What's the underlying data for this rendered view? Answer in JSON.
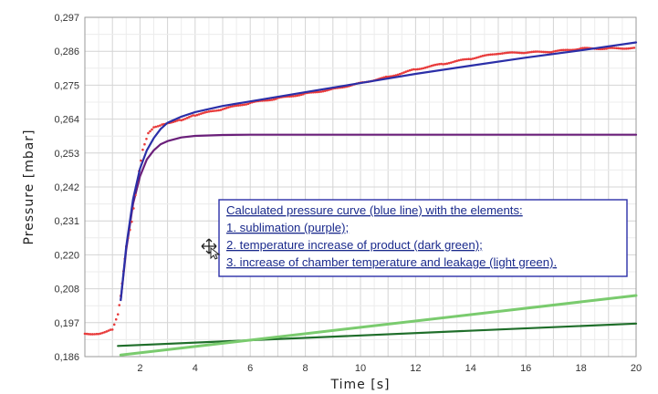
{
  "chart_data": {
    "type": "line",
    "title": "",
    "xlabel": "Time [s]",
    "ylabel": "Pressure [mbar]",
    "xlim": [
      0,
      20
    ],
    "ylim": [
      0.186,
      0.297
    ],
    "x_ticks": [
      2,
      4,
      6,
      8,
      10,
      12,
      14,
      16,
      18,
      20
    ],
    "y_ticks": [
      "0,186",
      "0,197",
      "0,208",
      "0,220",
      "0,231",
      "0,242",
      "0,253",
      "0,264",
      "0,275",
      "0,286",
      "0,297"
    ],
    "grid": true,
    "series": [
      {
        "color": "#2b2fa8",
        "kind": "line",
        "x": [
          1.3,
          1.5,
          1.75,
          2.0,
          2.25,
          2.5,
          2.75,
          3.0,
          3.5,
          4.0,
          5.0,
          6.0,
          8.0,
          10.0,
          12.0,
          14.0,
          16.0,
          18.0,
          20.0
        ],
        "y": [
          0.2045,
          0.222,
          0.2375,
          0.2475,
          0.2535,
          0.2575,
          0.2605,
          0.2625,
          0.2645,
          0.266,
          0.268,
          0.2695,
          0.2725,
          0.2755,
          0.2785,
          0.2812,
          0.2838,
          0.2862,
          0.2888
        ]
      },
      {
        "color": "#e83a3a",
        "kind": "dots",
        "x": [
          0.0,
          0.5,
          1.0,
          1.2,
          1.3,
          1.4,
          1.5,
          1.7,
          1.9,
          2.1,
          2.3,
          2.5,
          2.8,
          3.0,
          3.5,
          4.0,
          5.0,
          6.0,
          7.0,
          8.0,
          9.0,
          10.0,
          11.0,
          12.0,
          13.0,
          14.0,
          15.0,
          16.0,
          17.0,
          18.0,
          19.0,
          20.0
        ],
        "y": [
          0.1935,
          0.1935,
          0.195,
          0.2,
          0.206,
          0.214,
          0.222,
          0.23,
          0.243,
          0.2535,
          0.259,
          0.261,
          0.262,
          0.2625,
          0.2635,
          0.265,
          0.267,
          0.269,
          0.2705,
          0.272,
          0.2735,
          0.2755,
          0.2775,
          0.28,
          0.2818,
          0.2835,
          0.2852,
          0.2855,
          0.2858,
          0.2868,
          0.2868,
          0.287
        ]
      },
      {
        "color": "#6a1f7a",
        "kind": "line",
        "x": [
          1.3,
          1.5,
          1.75,
          2.0,
          2.25,
          2.5,
          2.75,
          3.0,
          3.5,
          4.0,
          5.0,
          6.0,
          10.0,
          20.0
        ],
        "y": [
          0.2045,
          0.221,
          0.236,
          0.245,
          0.2505,
          0.2535,
          0.2555,
          0.2565,
          0.2577,
          0.2582,
          0.2585,
          0.2586,
          0.2586,
          0.2586
        ]
      },
      {
        "color": "#1f6e2a",
        "kind": "line",
        "x": [
          1.2,
          20.0
        ],
        "y": [
          0.1895,
          0.1968
        ]
      },
      {
        "color": "#7acb6e",
        "kind": "line",
        "x": [
          1.3,
          20.0
        ],
        "y": [
          0.1865,
          0.206
        ]
      }
    ],
    "annotation": {
      "lines": [
        "Calculated pressure curve (blue line)  with the elements:",
        "1. sublimation (purple);",
        "2. temperature increase of product (dark green);",
        "3. increase of chamber temperature and leakage (light green)."
      ],
      "border_color": "#2b2fa8",
      "text_color": "#1a2a8c"
    },
    "icons": {
      "cursor": "move-cursor-icon"
    }
  }
}
